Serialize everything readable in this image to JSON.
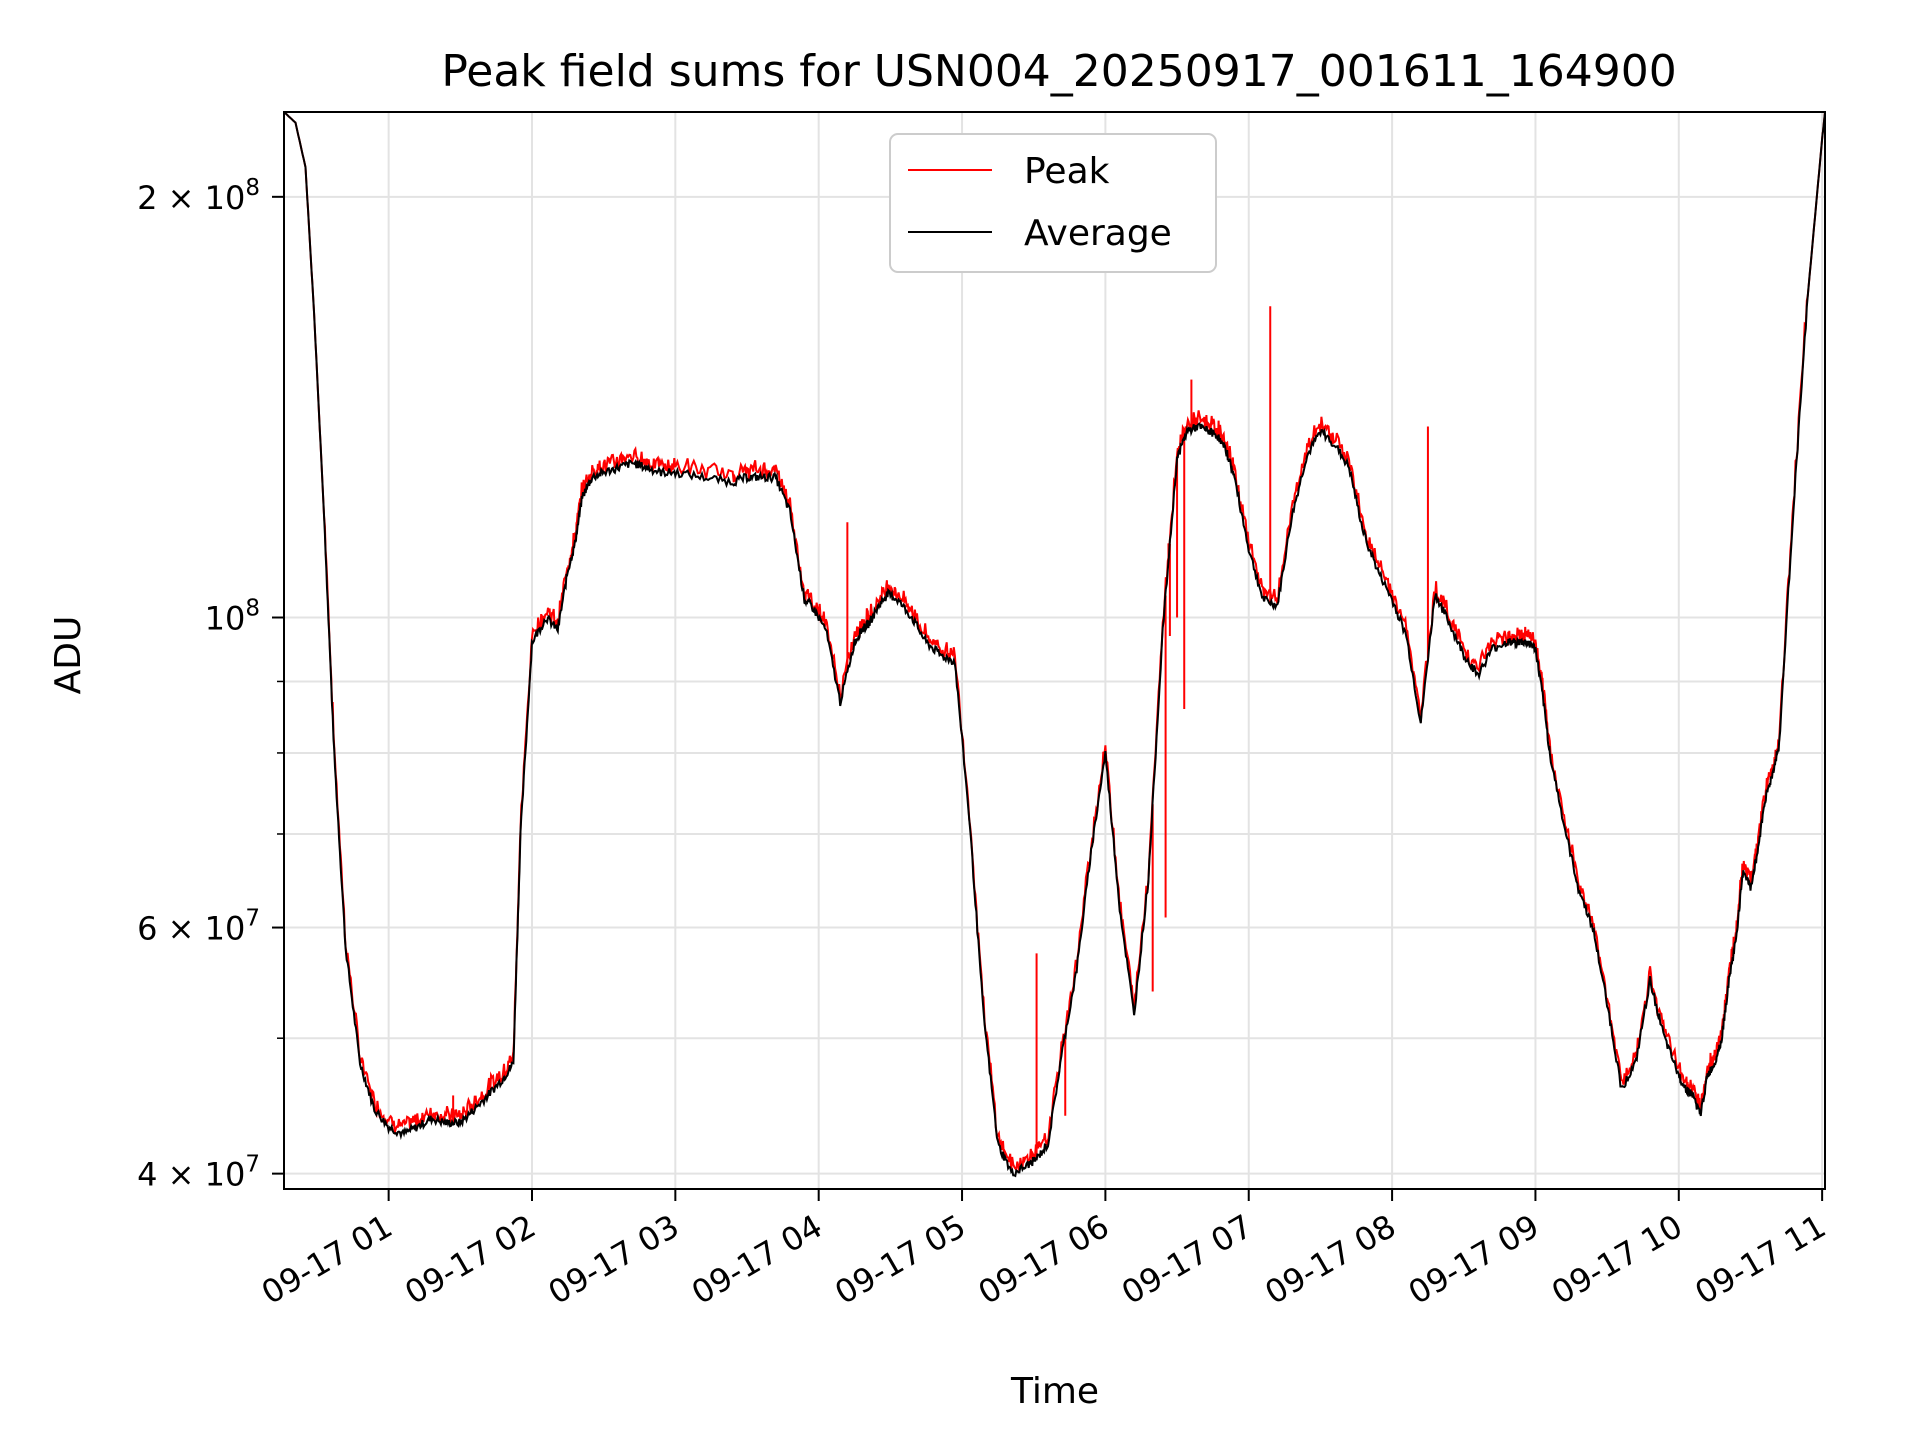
{
  "chart_data": {
    "type": "line",
    "title": "Peak field sums for USN004_20250917_001611_164900",
    "xlabel": "Time",
    "ylabel": "ADU",
    "yscale": "log",
    "xlim": [
      0.27,
      11.02
    ],
    "ylim": [
      39000000,
      230000000
    ],
    "grid": true,
    "legend_position": "top-center",
    "x_ticks": [
      {
        "value": 1,
        "label": "09-17 01"
      },
      {
        "value": 2,
        "label": "09-17 02"
      },
      {
        "value": 3,
        "label": "09-17 03"
      },
      {
        "value": 4,
        "label": "09-17 04"
      },
      {
        "value": 5,
        "label": "09-17 05"
      },
      {
        "value": 6,
        "label": "09-17 06"
      },
      {
        "value": 7,
        "label": "09-17 07"
      },
      {
        "value": 8,
        "label": "09-17 08"
      },
      {
        "value": 9,
        "label": "09-17 09"
      },
      {
        "value": 10,
        "label": "09-17 10"
      },
      {
        "value": 11,
        "label": "09-17 11"
      }
    ],
    "y_ticks": [
      {
        "value": 40000000,
        "base": "4 × 10",
        "exp": "7"
      },
      {
        "value": 60000000,
        "base": "6 × 10",
        "exp": "7"
      },
      {
        "value": 100000000,
        "base": "10",
        "exp": "8"
      },
      {
        "value": 200000000,
        "base": "2 × 10",
        "exp": "8"
      }
    ],
    "y_minor_ticks": [
      50000000,
      70000000,
      80000000,
      90000000
    ],
    "x_unit": "hours since 2025-09-17 00:00",
    "series": [
      {
        "name": "Average",
        "color": "#000000",
        "x": [
          0.27,
          0.35,
          0.42,
          0.48,
          0.55,
          0.62,
          0.7,
          0.8,
          0.9,
          1.0,
          1.1,
          1.2,
          1.3,
          1.4,
          1.5,
          1.6,
          1.7,
          1.8,
          1.87,
          1.92,
          2.0,
          2.1,
          2.18,
          2.25,
          2.3,
          2.35,
          2.42,
          2.5,
          2.6,
          2.7,
          2.8,
          2.9,
          3.0,
          3.2,
          3.4,
          3.5,
          3.6,
          3.7,
          3.8,
          3.9,
          3.95,
          4.05,
          4.15,
          4.25,
          4.3,
          4.35,
          4.42,
          4.48,
          4.55,
          4.65,
          4.75,
          4.85,
          4.95,
          5.05,
          5.15,
          5.25,
          5.35,
          5.45,
          5.52,
          5.6,
          5.7,
          5.8,
          5.9,
          6.0,
          6.1,
          6.2,
          6.3,
          6.4,
          6.5,
          6.57,
          6.65,
          6.72,
          6.78,
          6.85,
          6.9,
          7.0,
          7.1,
          7.2,
          7.3,
          7.4,
          7.5,
          7.6,
          7.7,
          7.8,
          7.9,
          8.0,
          8.1,
          8.2,
          8.3,
          8.4,
          8.5,
          8.6,
          8.7,
          8.8,
          8.85,
          8.9,
          8.95,
          9.0,
          9.05,
          9.1,
          9.2,
          9.3,
          9.4,
          9.5,
          9.6,
          9.7,
          9.8,
          9.9,
          10.0,
          10.05,
          10.1,
          10.15,
          10.2,
          10.25,
          10.3,
          10.35,
          10.4,
          10.45,
          10.5,
          10.55,
          10.6,
          10.65,
          10.7,
          10.8,
          10.9,
          11.0,
          11.02
        ],
        "y": [
          230000000,
          226000000,
          210000000,
          165000000,
          118000000,
          80000000,
          58000000,
          48000000,
          44500000,
          43200000,
          42700000,
          43200000,
          43800000,
          43500000,
          43500000,
          44500000,
          45600000,
          46800000,
          48000000,
          70000000,
          96000000,
          100000000,
          98000000,
          108000000,
          113000000,
          122000000,
          126000000,
          127000000,
          128000000,
          129000000,
          128000000,
          127000000,
          127000000,
          126000000,
          125000000,
          126000000,
          126000000,
          126000000,
          119000000,
          103000000,
          102000000,
          98000000,
          87000000,
          96000000,
          98000000,
          99000000,
          102000000,
          104000000,
          103000000,
          100000000,
          96000000,
          94000000,
          93000000,
          72000000,
          52000000,
          42000000,
          40000000,
          40500000,
          41000000,
          42000000,
          49000000,
          56000000,
          68000000,
          80000000,
          62000000,
          52000000,
          65000000,
          98000000,
          130000000,
          136000000,
          137000000,
          136000000,
          135000000,
          131000000,
          126000000,
          112000000,
          103000000,
          102000000,
          118000000,
          130000000,
          136000000,
          133000000,
          128000000,
          115000000,
          108000000,
          103000000,
          97000000,
          84000000,
          104000000,
          99000000,
          94000000,
          91000000,
          95000000,
          96000000,
          96000000,
          96000000,
          96000000,
          95000000,
          88000000,
          80000000,
          71000000,
          64000000,
          60000000,
          53000000,
          46000000,
          48000000,
          55000000,
          50000000,
          47000000,
          46000000,
          45500000,
          44000000,
          47000000,
          48000000,
          50000000,
          55000000,
          59000000,
          66000000,
          64000000,
          68000000,
          74000000,
          77000000,
          81000000,
          120000000,
          170000000,
          220000000,
          230000000
        ]
      },
      {
        "name": "Peak",
        "color": "#ff0000",
        "spikes": [
          {
            "x": 1.45,
            "y": 45500000
          },
          {
            "x": 4.2,
            "y": 117000000
          },
          {
            "x": 5.52,
            "y": 57500000
          },
          {
            "x": 5.72,
            "y": 44000000
          },
          {
            "x": 6.12,
            "y": 60000000
          },
          {
            "x": 6.33,
            "y": 54000000
          },
          {
            "x": 6.42,
            "y": 61000000
          },
          {
            "x": 6.44,
            "y": 113000000
          },
          {
            "x": 6.45,
            "y": 97000000
          },
          {
            "x": 6.5,
            "y": 100000000
          },
          {
            "x": 6.55,
            "y": 86000000
          },
          {
            "x": 6.6,
            "y": 148000000
          },
          {
            "x": 7.15,
            "y": 167000000
          },
          {
            "x": 8.25,
            "y": 137000000
          }
        ]
      }
    ]
  }
}
